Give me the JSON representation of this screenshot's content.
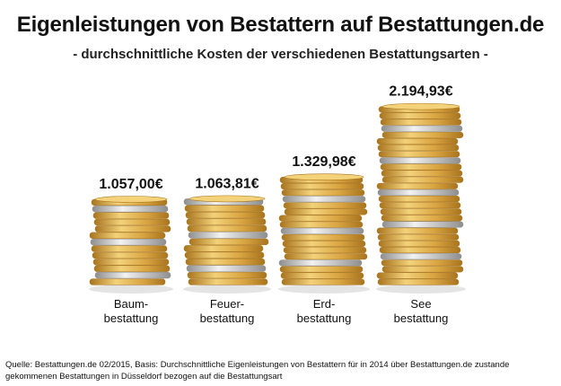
{
  "title": "Eigenleistungen von Bestattern auf Bestattungen.de",
  "subtitle": "- durchschnittliche Kosten der verschiedenen Bestattungsarten -",
  "source": "Quelle: Bestattungen.de 02/2015, Basis: Durchschnittliche Eigenleistungen von Bestattern für in 2014 über Bestattungen.de zustande gekommenen Bestattungen in Düsseldorf bezogen auf die Bestattungsart",
  "colors": {
    "gold": "#d9a441",
    "gold_light": "#f3d27a",
    "gold_dark": "#a8741e",
    "silver": "#c9c9c9",
    "silver_dark": "#8e8e8e"
  },
  "chart_data": {
    "type": "bar",
    "categories": [
      {
        "line1": "Baum-",
        "line2": "bestattung"
      },
      {
        "line1": "Feuer-",
        "line2": "bestattung"
      },
      {
        "line1": "Erd-",
        "line2": "bestattung"
      },
      {
        "line1": "See",
        "line2": "bestattung"
      }
    ],
    "values": [
      1057.0,
      1063.81,
      1329.98,
      2194.93
    ],
    "value_labels": [
      "1.057,00€",
      "1.063,81€",
      "1.329,98€",
      "2.194,93€"
    ],
    "ylim": [
      0,
      2400
    ]
  }
}
